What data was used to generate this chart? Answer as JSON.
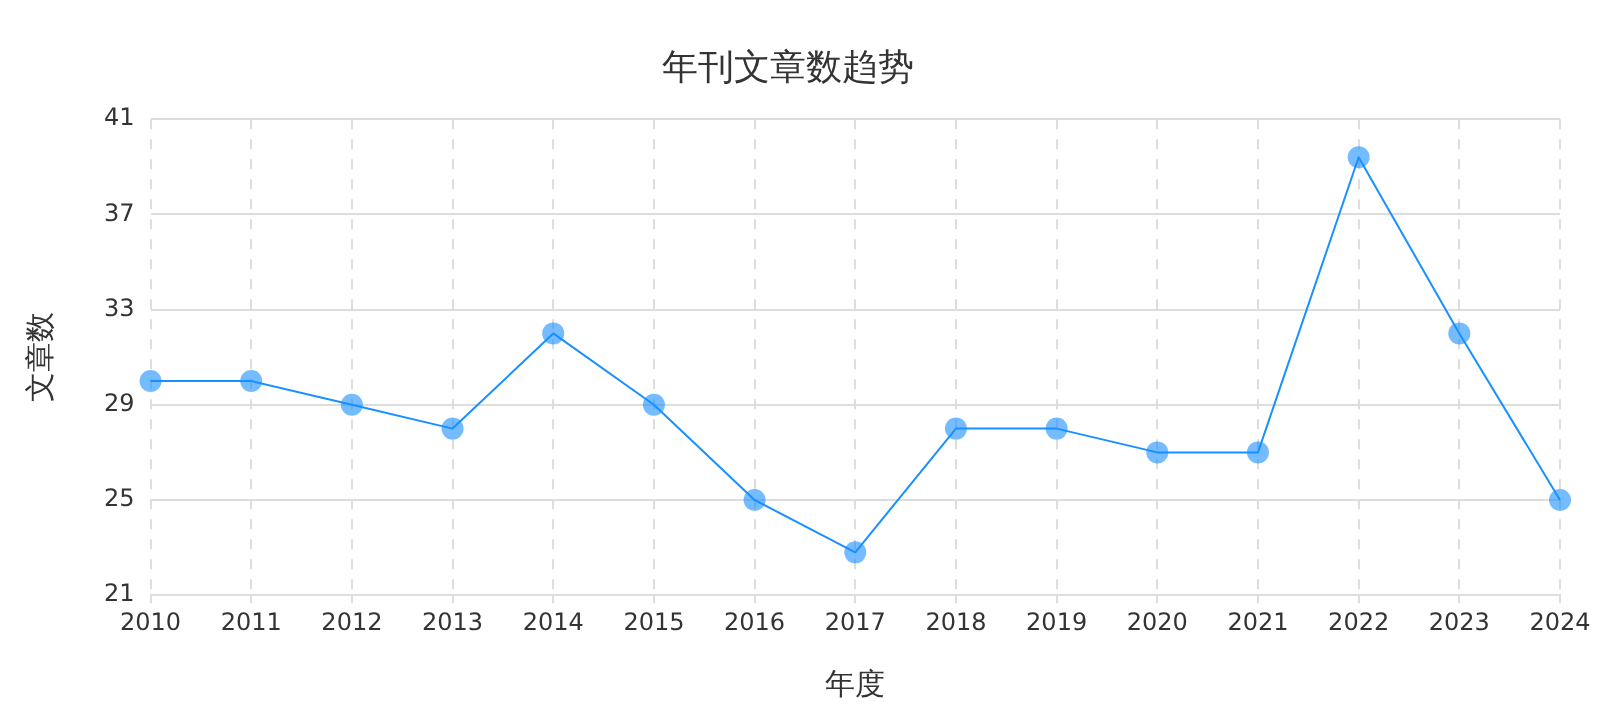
{
  "chart_data": {
    "type": "line",
    "title": "年刊文章数趋势",
    "xlabel": "年度",
    "ylabel": "文章数",
    "categories": [
      "2010",
      "2011",
      "2012",
      "2013",
      "2014",
      "2015",
      "2016",
      "2017",
      "2018",
      "2019",
      "2020",
      "2021",
      "2022",
      "2023",
      "2024"
    ],
    "series": [
      {
        "color": "#1890ff",
        "values": [
          30,
          30,
          29,
          28,
          32,
          29,
          25,
          22.8,
          28,
          28,
          27,
          27,
          39.4,
          32,
          25
        ]
      }
    ],
    "ylim": [
      21,
      41
    ],
    "yticks": [
      21,
      25,
      29,
      33,
      37,
      41
    ],
    "grid": true,
    "legend": false,
    "marker": "circle",
    "line_style": "solid"
  }
}
